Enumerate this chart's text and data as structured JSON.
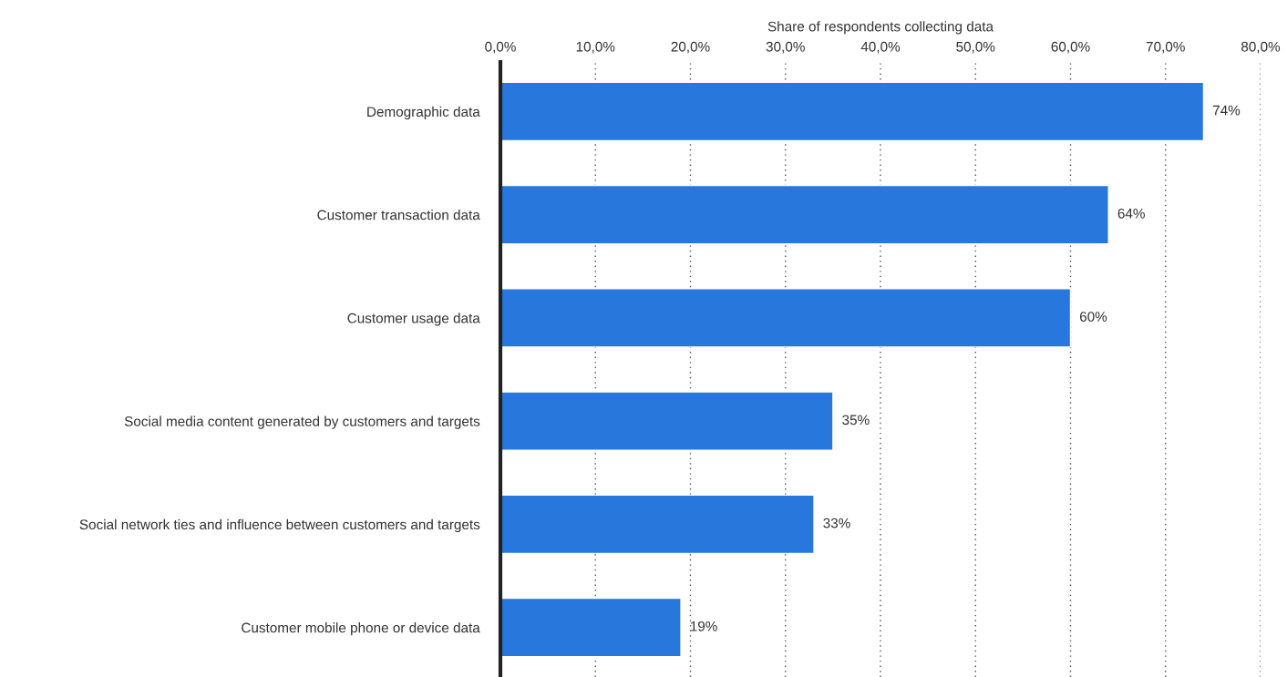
{
  "chart_data": {
    "type": "bar",
    "orientation": "horizontal",
    "xlabel": "Share of respondents collecting data",
    "categories": [
      "Demographic data",
      "Customer transaction data",
      "Customer usage data",
      "Social media content generated by customers and targets",
      "Social network ties and influence between customers and targets",
      "Customer mobile phone or device data"
    ],
    "values": [
      74,
      64,
      60,
      35,
      33,
      19
    ],
    "value_labels": [
      "74%",
      "64%",
      "60%",
      "35%",
      "33%",
      "19%"
    ],
    "color": "#2777dd",
    "xlim": [
      0,
      80
    ],
    "xticks": [
      {
        "value": 0,
        "label": "0,0%"
      },
      {
        "value": 10,
        "label": "10,0%"
      },
      {
        "value": 20,
        "label": "20,0%"
      },
      {
        "value": 30,
        "label": "30,0%"
      },
      {
        "value": 40,
        "label": "40,0%"
      },
      {
        "value": 50,
        "label": "50,0%"
      },
      {
        "value": 60,
        "label": "60,0%"
      },
      {
        "value": 70,
        "label": "70,0%"
      },
      {
        "value": 80,
        "label": "80,0%"
      }
    ],
    "grid": "x",
    "legend": false
  }
}
